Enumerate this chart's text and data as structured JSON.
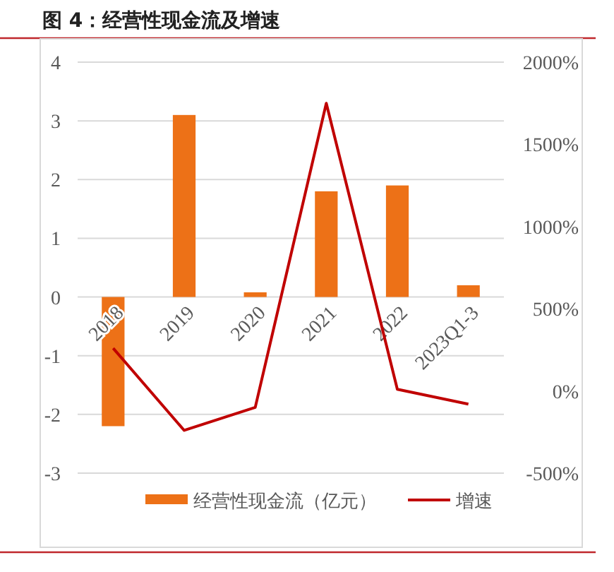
{
  "chart_data": {
    "type": "bar",
    "title": "图 4：经营性现金流及增速",
    "categories": [
      "2018",
      "2019",
      "2020",
      "2021",
      "2022",
      "2023Q1-3"
    ],
    "series": [
      {
        "name": "经营性现金流（亿元）",
        "color": "#ed7117",
        "values": [
          -2.2,
          3.1,
          0.08,
          1.8,
          1.9,
          0.2
        ]
      },
      {
        "name": "增速",
        "type": "line",
        "axis": "y2",
        "color": "#c00000",
        "values": [
          260,
          -240,
          -100,
          1750,
          10,
          -80
        ]
      }
    ],
    "ylim": [
      -3,
      4
    ],
    "yticks": [
      -3,
      -2,
      -1,
      0,
      1,
      2,
      3,
      4
    ],
    "y2lim": [
      -500,
      2000
    ],
    "y2ticks": [
      {
        "value": -500,
        "label": "-500%"
      },
      {
        "value": 0,
        "label": "0%"
      },
      {
        "value": 500,
        "label": "500%"
      },
      {
        "value": 1000,
        "label": "1000%"
      },
      {
        "value": 1500,
        "label": "1500%"
      },
      {
        "value": 2000,
        "label": "2000%"
      }
    ],
    "grid": "y",
    "legend": "bottom"
  }
}
